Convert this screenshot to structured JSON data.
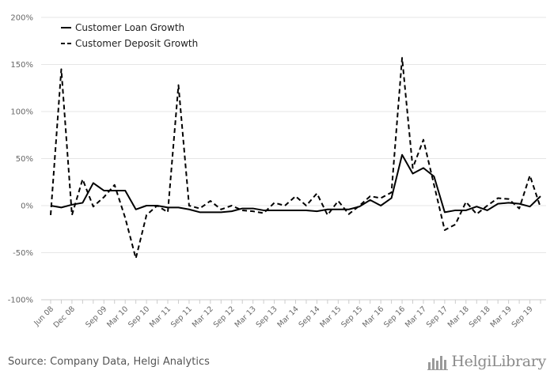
{
  "chart_data": {
    "type": "line",
    "y_ticks": [
      "200%",
      "150%",
      "100%",
      "50%",
      "0%",
      "-50%",
      "-100%"
    ],
    "y_tick_values": [
      200,
      150,
      100,
      50,
      0,
      -50,
      -100
    ],
    "ylim": [
      -100,
      200
    ],
    "y_unit": "%",
    "grid": true,
    "legend_position": "top-left",
    "x_tick_labels": [
      "Jun 08",
      "Dec 08",
      "Sep 09",
      "Mar 10",
      "Sep 10",
      "Mar 11",
      "Sep 11",
      "Mar 12",
      "Sep 12",
      "Mar 13",
      "Sep 13",
      "Mar 14",
      "Sep 14",
      "Mar 15",
      "Sep 15",
      "Mar 16",
      "Sep 16",
      "Mar 17",
      "Sep 17",
      "Mar 18",
      "Sep 18",
      "Mar 19",
      "Sep 19"
    ],
    "x_tick_indices": [
      0,
      2,
      5,
      7,
      9,
      11,
      13,
      15,
      17,
      19,
      21,
      23,
      25,
      27,
      29,
      31,
      33,
      35,
      37,
      39,
      41,
      43,
      45
    ],
    "x": [
      "Jun 08",
      "Sep 08",
      "Dec 08",
      "Mar 09",
      "Jun 09",
      "Sep 09",
      "Dec 09",
      "Mar 10",
      "Jun 10",
      "Sep 10",
      "Dec 10",
      "Mar 11",
      "Jun 11",
      "Sep 11",
      "Dec 11",
      "Mar 12",
      "Jun 12",
      "Sep 12",
      "Dec 12",
      "Mar 13",
      "Jun 13",
      "Sep 13",
      "Dec 13",
      "Mar 14",
      "Jun 14",
      "Sep 14",
      "Dec 14",
      "Mar 15",
      "Jun 15",
      "Sep 15",
      "Dec 15",
      "Mar 16",
      "Jun 16",
      "Sep 16",
      "Dec 16",
      "Mar 17",
      "Jun 17",
      "Sep 17",
      "Dec 17",
      "Mar 18",
      "Jun 18",
      "Sep 18",
      "Dec 18",
      "Mar 19",
      "Jun 19",
      "Sep 19",
      "Dec 19"
    ],
    "series": [
      {
        "name": "Customer Loan Growth",
        "style": "solid",
        "color": "#000000",
        "values": [
          0,
          -2,
          1,
          3,
          24,
          16,
          16,
          16,
          -4,
          0,
          0,
          -2,
          -2,
          -4,
          -7,
          -7,
          -7,
          -6,
          -3,
          -3,
          -5,
          -5,
          -5,
          -5,
          -5,
          -6,
          -4,
          -4,
          -4,
          -1,
          6,
          0,
          8,
          54,
          34,
          40,
          31,
          -7,
          -5,
          -5,
          -1,
          -5,
          2,
          3,
          2,
          -1,
          10
        ]
      },
      {
        "name": "Customer Deposit Growth",
        "style": "dashed",
        "color": "#000000",
        "values": [
          -10,
          145,
          -10,
          28,
          -1,
          9,
          22,
          -13,
          -56,
          -10,
          0,
          -7,
          128,
          0,
          -3,
          5,
          -4,
          0,
          -5,
          -6,
          -8,
          3,
          0,
          10,
          0,
          13,
          -10,
          5,
          -9,
          0,
          10,
          8,
          14,
          157,
          40,
          70,
          22,
          -26,
          -20,
          4,
          -9,
          0,
          8,
          7,
          -3,
          32,
          -2
        ]
      }
    ]
  },
  "footer": {
    "source": "Source: Company Data, Helgi Analytics",
    "brand_name": "HelgiLibrary",
    "brand_icon": "chart-bars-logo-icon"
  }
}
